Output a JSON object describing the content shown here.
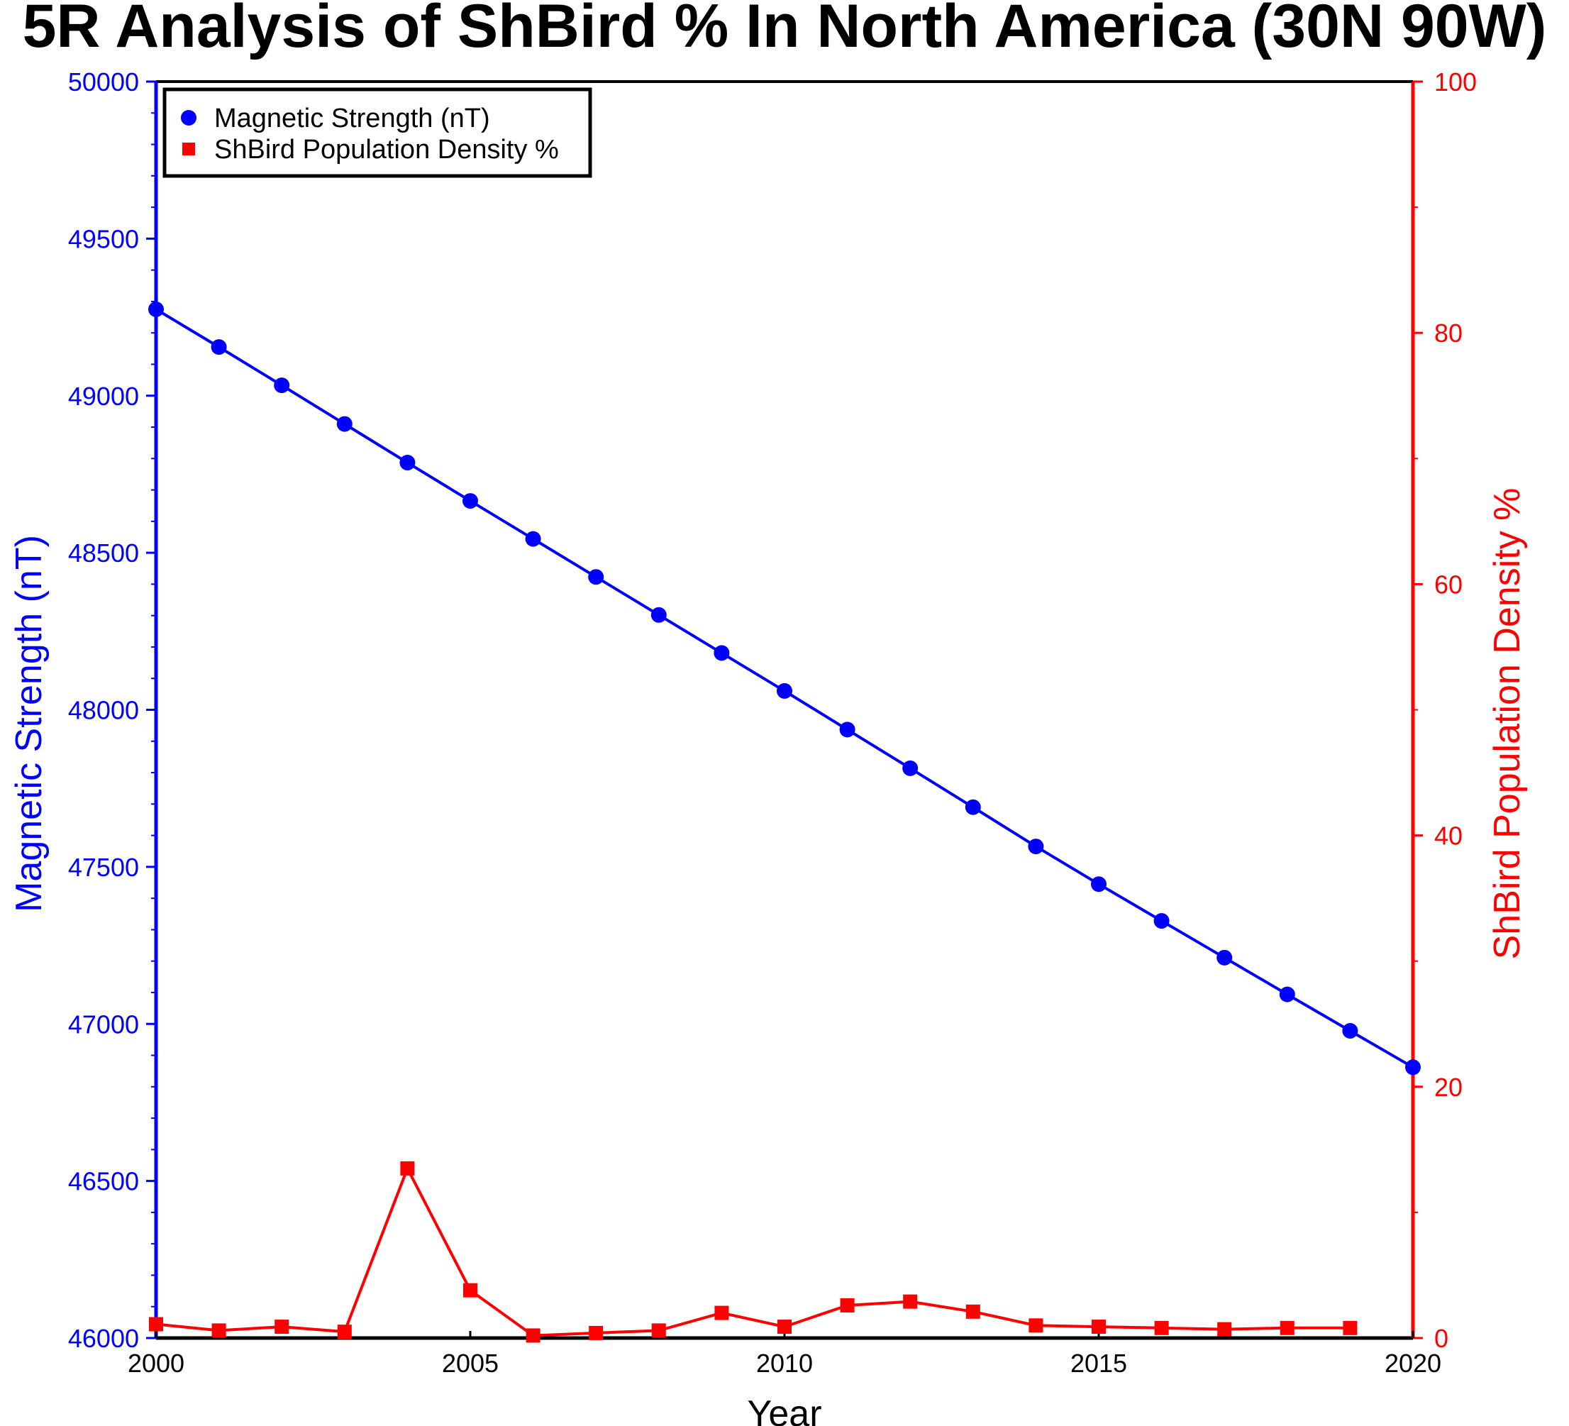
{
  "chart_data": {
    "type": "line",
    "title": "5R Analysis of ShBird % In North America (30N 90W)",
    "xlabel": "Year",
    "ylabel_left": "Magnetic Strength (nT)",
    "ylabel_right": "ShBird Population Density %",
    "xlim": [
      2000,
      2020
    ],
    "ylim_left": [
      46000,
      50000
    ],
    "ylim_right": [
      0,
      100
    ],
    "x_ticks": [
      2000,
      2005,
      2010,
      2015,
      2020
    ],
    "y_left_ticks": [
      46000,
      46500,
      47000,
      47500,
      48000,
      48500,
      49000,
      49500,
      50000
    ],
    "y_right_ticks": [
      0,
      20,
      40,
      60,
      80,
      100
    ],
    "legend_position": "top-left",
    "grid": false,
    "colors": {
      "magnetic": "#0000ff",
      "shbird": "#ff0000",
      "axes": "#000000"
    },
    "series": [
      {
        "name": "Magnetic Strength (nT)",
        "axis": "left",
        "marker": "circle",
        "color": "#0000ff",
        "x": [
          2000,
          2001,
          2002,
          2003,
          2004,
          2005,
          2006,
          2007,
          2008,
          2009,
          2010,
          2011,
          2012,
          2013,
          2014,
          2015,
          2016,
          2017,
          2018,
          2019,
          2020
        ],
        "y": [
          49275,
          49155,
          49033,
          48910,
          48787,
          48665,
          48544,
          48423,
          48302,
          48181,
          48060,
          47937,
          47814,
          47690,
          47565,
          47445,
          47328,
          47211,
          47094,
          46978,
          46862
        ]
      },
      {
        "name": "ShBird Population Density %",
        "axis": "right",
        "marker": "square",
        "color": "#ff0000",
        "x": [
          2000,
          2001,
          2002,
          2003,
          2004,
          2005,
          2006,
          2007,
          2008,
          2009,
          2010,
          2011,
          2012,
          2013,
          2014,
          2015,
          2016,
          2017,
          2018,
          2019
        ],
        "y": [
          1.1,
          0.6,
          0.9,
          0.5,
          13.5,
          3.8,
          0.2,
          0.4,
          0.6,
          2.0,
          0.9,
          2.6,
          2.9,
          2.1,
          1.0,
          0.9,
          0.8,
          0.7,
          0.8,
          0.8
        ]
      }
    ]
  }
}
